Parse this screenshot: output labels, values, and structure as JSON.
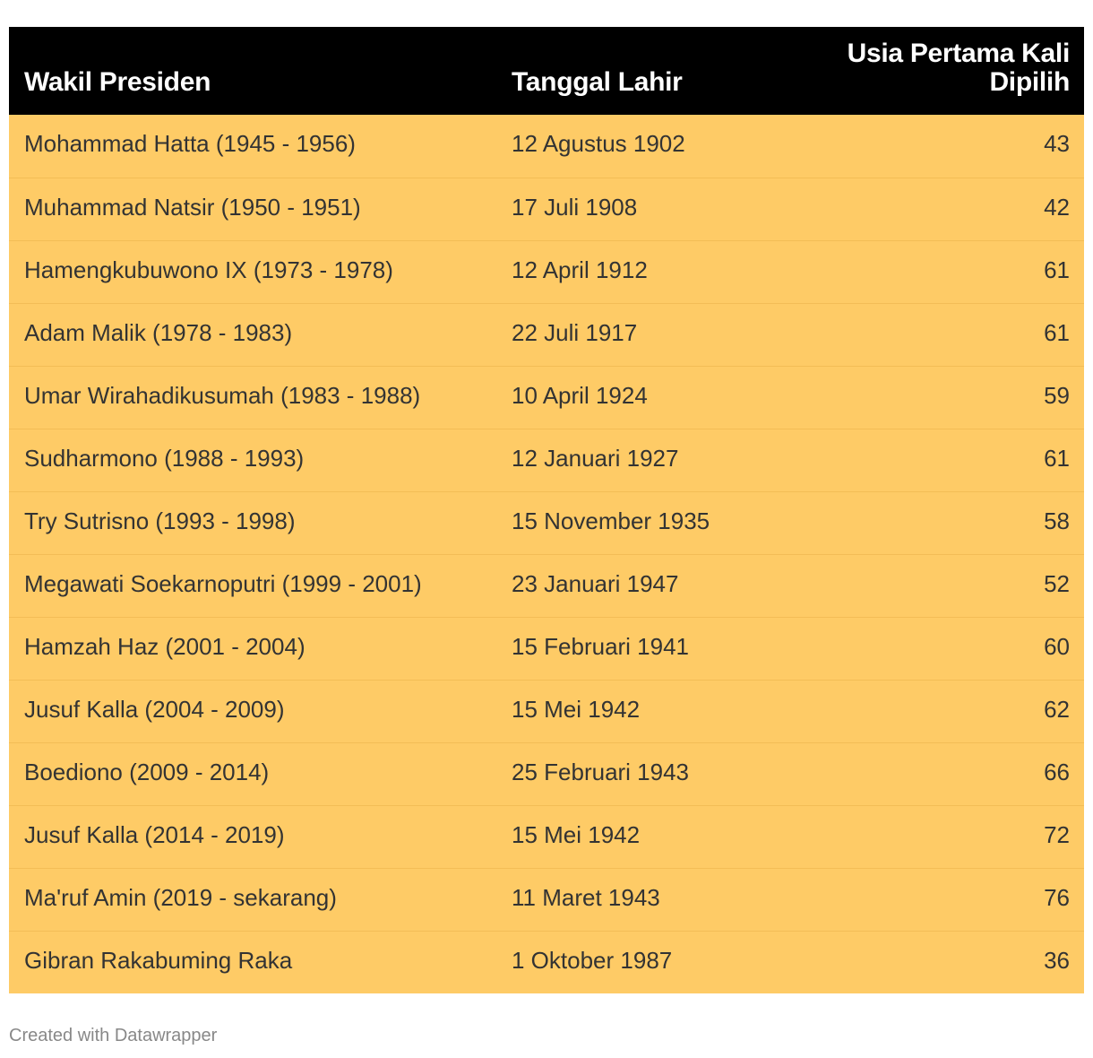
{
  "chart_data": {
    "type": "table",
    "columns": [
      "Wakil Presiden",
      "Tanggal Lahir",
      "Usia Pertama Kali Dipilih"
    ],
    "rows": [
      [
        "Mohammad Hatta (1945 - 1956)",
        "12 Agustus 1902",
        43
      ],
      [
        "Muhammad Natsir (1950 - 1951)",
        "17 Juli 1908",
        42
      ],
      [
        "Hamengkubuwono IX (1973 - 1978)",
        "12 April 1912",
        61
      ],
      [
        "Adam Malik (1978 - 1983)",
        "22 Juli 1917",
        61
      ],
      [
        "Umar Wirahadikusumah (1983 - 1988)",
        "10 April 1924",
        59
      ],
      [
        "Sudharmono (1988 - 1993)",
        "12 Januari 1927",
        61
      ],
      [
        "Try Sutrisno (1993 - 1998)",
        "15 November 1935",
        58
      ],
      [
        "Megawati Soekarnoputri (1999 - 2001)",
        "23 Januari 1947",
        52
      ],
      [
        "Hamzah Haz (2001 - 2004)",
        "15 Februari 1941",
        60
      ],
      [
        "Jusuf Kalla (2004 - 2009)",
        "15 Mei 1942",
        62
      ],
      [
        "Boediono (2009 - 2014)",
        "25 Februari 1943",
        66
      ],
      [
        "Jusuf Kalla (2014 - 2019)",
        "15 Mei 1942",
        72
      ],
      [
        "Ma'ruf Amin (2019 - sekarang)",
        "11 Maret 1943",
        76
      ],
      [
        "Gibran Rakabuming Raka",
        "1 Oktober 1987",
        36
      ]
    ]
  },
  "header": {
    "col1": "Wakil Presiden",
    "col2": "Tanggal Lahir",
    "col3_line1": "Usia Pertama Kali",
    "col3_line2": "Dipilih"
  },
  "footer": {
    "credit": "Created with Datawrapper"
  },
  "colors": {
    "header_bg": "#000000",
    "row_bg": "#fecb66",
    "row_text": "#333333"
  }
}
